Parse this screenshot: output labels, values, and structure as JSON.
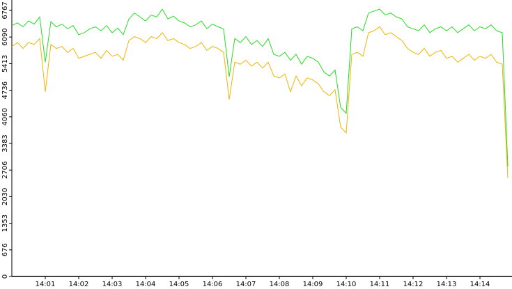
{
  "chart_data": {
    "type": "line",
    "categories": [
      null,
      null,
      null,
      null,
      null,
      null,
      "14:01",
      null,
      null,
      null,
      null,
      null,
      "14:02",
      null,
      null,
      null,
      null,
      null,
      "14:03",
      null,
      null,
      null,
      null,
      null,
      "14:04",
      null,
      null,
      null,
      null,
      null,
      "14:05",
      null,
      null,
      null,
      null,
      null,
      "14:06",
      null,
      null,
      null,
      null,
      null,
      "14:07",
      null,
      null,
      null,
      null,
      null,
      "14:08",
      null,
      null,
      null,
      null,
      null,
      "14:09",
      null,
      null,
      null,
      null,
      null,
      "14:10",
      null,
      null,
      null,
      null,
      null,
      "14:11",
      null,
      null,
      null,
      null,
      null,
      "14:12",
      null,
      null,
      null,
      null,
      null,
      "14:13",
      null,
      null,
      null,
      null,
      null,
      "14:14",
      null,
      null,
      null,
      null,
      null
    ],
    "series": [
      {
        "color": "#22dd22",
        "values": [
          6380,
          6450,
          6350,
          6500,
          6420,
          6600,
          5450,
          6480,
          6350,
          6420,
          6300,
          6380,
          6150,
          6200,
          6300,
          6350,
          6250,
          6380,
          6200,
          6320,
          6150,
          6550,
          6700,
          6600,
          6500,
          6650,
          6600,
          6800,
          6550,
          6620,
          6500,
          6450,
          6350,
          6400,
          6500,
          6300,
          6420,
          6350,
          6300,
          5080,
          6050,
          5950,
          6100,
          5900,
          6000,
          5850,
          6050,
          5650,
          5600,
          5700,
          5500,
          5650,
          5400,
          5600,
          5550,
          5450,
          5200,
          5100,
          5250,
          4300,
          4150,
          6300,
          6350,
          6250,
          6700,
          6750,
          6800,
          6650,
          6700,
          6600,
          6550,
          6350,
          6300,
          6250,
          6400,
          6200,
          6300,
          6350,
          6250,
          6350,
          6200,
          6300,
          6400,
          6250,
          6350,
          6300,
          6400,
          6250,
          6200,
          2800
        ]
      },
      {
        "color": "#f0b400",
        "values": [
          5850,
          5950,
          5800,
          5950,
          5900,
          6050,
          4700,
          5900,
          5800,
          5850,
          5700,
          5800,
          5550,
          5600,
          5650,
          5700,
          5550,
          5750,
          5600,
          5650,
          5500,
          6000,
          6100,
          6050,
          5950,
          6100,
          6050,
          6200,
          6000,
          6050,
          5950,
          5900,
          5800,
          5850,
          5950,
          5750,
          5850,
          5800,
          5700,
          4500,
          5450,
          5400,
          5500,
          5350,
          5450,
          5300,
          5450,
          5100,
          5050,
          5150,
          4700,
          5100,
          4850,
          5050,
          5000,
          4900,
          4700,
          4600,
          4750,
          3800,
          3650,
          5650,
          5700,
          5600,
          6200,
          6250,
          6350,
          6150,
          6200,
          6100,
          6000,
          5800,
          5700,
          5650,
          5800,
          5600,
          5700,
          5750,
          5550,
          5600,
          5450,
          5550,
          5650,
          5500,
          5600,
          5550,
          5650,
          5450,
          5400,
          2500
        ]
      }
    ],
    "ylim": [
      0,
      7032
    ],
    "yticks": [
      0,
      676,
      1353,
      2030,
      2706,
      3383,
      4060,
      4736,
      5413,
      6090,
      6767
    ]
  }
}
